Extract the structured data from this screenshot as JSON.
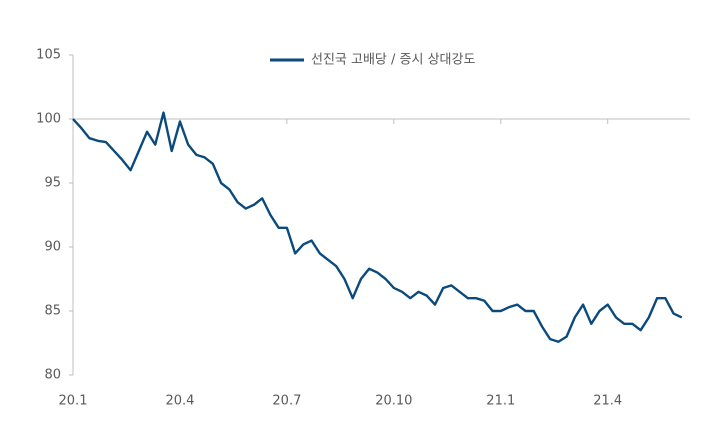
{
  "chart_data": {
    "type": "line",
    "series": [
      {
        "name": "선진국 고배당 / 증시 상대강도",
        "color": "#0b4a7d",
        "values": [
          100,
          99.3,
          98.5,
          98.3,
          98.2,
          97.5,
          96.8,
          96.0,
          97.5,
          99.0,
          98.0,
          100.5,
          97.5,
          99.8,
          98.0,
          97.2,
          97.0,
          96.5,
          95.0,
          94.5,
          93.5,
          93.0,
          93.3,
          93.8,
          92.5,
          91.5,
          91.5,
          89.5,
          90.2,
          90.5,
          89.5,
          89.0,
          88.5,
          87.5,
          86.0,
          87.5,
          88.3,
          88.0,
          87.5,
          86.8,
          86.5,
          86.0,
          86.5,
          86.2,
          85.5,
          86.8,
          87.0,
          86.5,
          86.0,
          86.0,
          85.8,
          85.0,
          85.0,
          85.3,
          85.5,
          85.0,
          85.0,
          83.8,
          82.8,
          82.6,
          83.0,
          84.5,
          85.5,
          84.0,
          85.0,
          85.5,
          84.5,
          84.0,
          84.0,
          83.5,
          84.5,
          86.0,
          86.0,
          84.8,
          84.5
        ]
      }
    ],
    "xlim": [
      0,
      75
    ],
    "xticks": [
      {
        "value": 0,
        "label": "20.1"
      },
      {
        "value": 13,
        "label": "20.4"
      },
      {
        "value": 26,
        "label": "20.7"
      },
      {
        "value": 39,
        "label": "20.10"
      },
      {
        "value": 52,
        "label": "21.1"
      },
      {
        "value": 65,
        "label": "21.4"
      }
    ],
    "ylim": [
      80,
      105
    ],
    "yticks": [
      80,
      85,
      90,
      95,
      100,
      105
    ],
    "x_axis_crosses_at": 100,
    "grid": false,
    "legend": "top"
  }
}
